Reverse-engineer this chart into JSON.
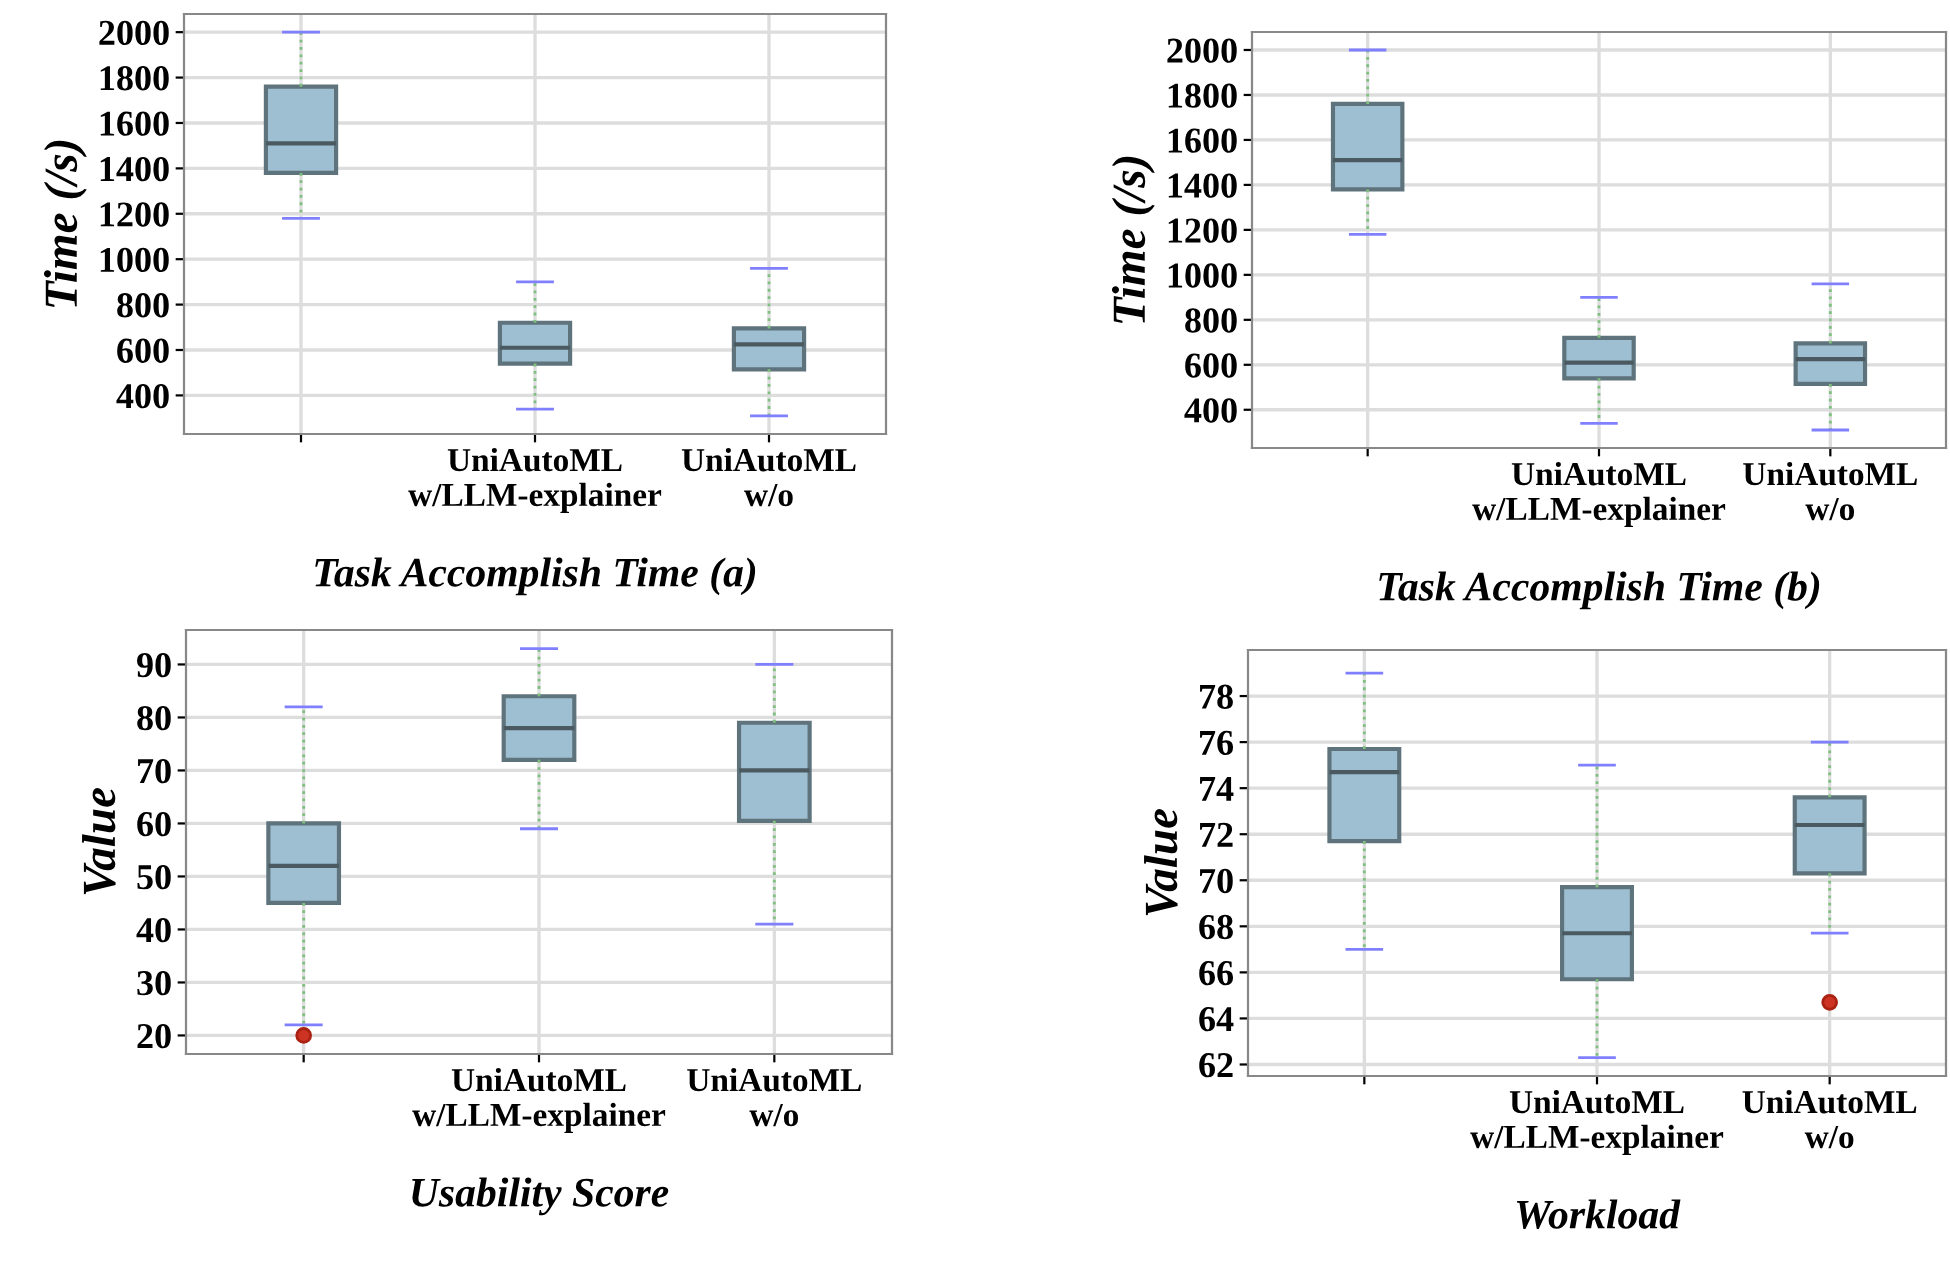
{
  "chart_data": [
    {
      "type": "box",
      "xlabel": "Task Accomplish Time (a)",
      "ylabel": "Time (/s)",
      "categories": [
        null,
        "UniAutoML\nw/LLM-explainer",
        "UniAutoML\nw/o"
      ],
      "color": "#9dbfd1",
      "ylim": [
        230,
        2080
      ],
      "yticks": [
        400,
        600,
        800,
        1000,
        1200,
        1400,
        1600,
        1800,
        2000
      ],
      "grid": true,
      "boxes": [
        {
          "low": 1180,
          "q1": 1380,
          "median": 1510,
          "q3": 1760,
          "high": 2000
        },
        {
          "low": 340,
          "q1": 540,
          "median": 610,
          "q3": 720,
          "high": 900
        },
        {
          "low": 310,
          "q1": 515,
          "median": 625,
          "q3": 695,
          "high": 960
        }
      ]
    },
    {
      "type": "box",
      "xlabel": "Task Accomplish Time (b)",
      "ylabel": "Time (/s)",
      "categories": [
        null,
        "UniAutoML\nw/LLM-explainer",
        "UniAutoML\nw/o"
      ],
      "color": "#9dbfd1",
      "ylim": [
        230,
        2080
      ],
      "yticks": [
        400,
        600,
        800,
        1000,
        1200,
        1400,
        1600,
        1800,
        2000
      ],
      "grid": true,
      "boxes": [
        {
          "low": 1180,
          "q1": 1380,
          "median": 1510,
          "q3": 1760,
          "high": 2000
        },
        {
          "low": 340,
          "q1": 540,
          "median": 610,
          "q3": 720,
          "high": 900
        },
        {
          "low": 310,
          "q1": 515,
          "median": 625,
          "q3": 695,
          "high": 960
        }
      ]
    },
    {
      "type": "box",
      "xlabel": "Usability Score",
      "ylabel": "Value",
      "categories": [
        null,
        "UniAutoML\nw/LLM-explainer",
        "UniAutoML\nw/o"
      ],
      "color": "#9dbfd1",
      "ylim": [
        16.5,
        96.5
      ],
      "yticks": [
        20,
        30,
        40,
        50,
        60,
        70,
        80,
        90
      ],
      "grid": true,
      "boxes": [
        {
          "low": 22,
          "q1": 45,
          "median": 52,
          "q3": 60,
          "high": 82,
          "outliers": [
            20
          ]
        },
        {
          "low": 59,
          "q1": 72,
          "median": 78,
          "q3": 84,
          "high": 93
        },
        {
          "low": 41,
          "q1": 60.5,
          "median": 70,
          "q3": 79,
          "high": 90
        }
      ]
    },
    {
      "type": "box",
      "xlabel": "Workload",
      "ylabel": "Value",
      "categories": [
        null,
        "UniAutoML\nw/LLM-explainer",
        "UniAutoML\nw/o"
      ],
      "color": "#9dbfd1",
      "ylim": [
        61.5,
        80
      ],
      "yticks": [
        62,
        64,
        66,
        68,
        70,
        72,
        74,
        76,
        78
      ],
      "grid": true,
      "boxes": [
        {
          "low": 67,
          "q1": 71.7,
          "median": 74.7,
          "q3": 75.7,
          "high": 79
        },
        {
          "low": 62.3,
          "q1": 65.7,
          "median": 67.7,
          "q3": 69.7,
          "high": 75
        },
        {
          "low": 67.7,
          "q1": 70.3,
          "median": 72.4,
          "q3": 73.6,
          "high": 76,
          "outliers": [
            64.7
          ]
        }
      ]
    }
  ]
}
